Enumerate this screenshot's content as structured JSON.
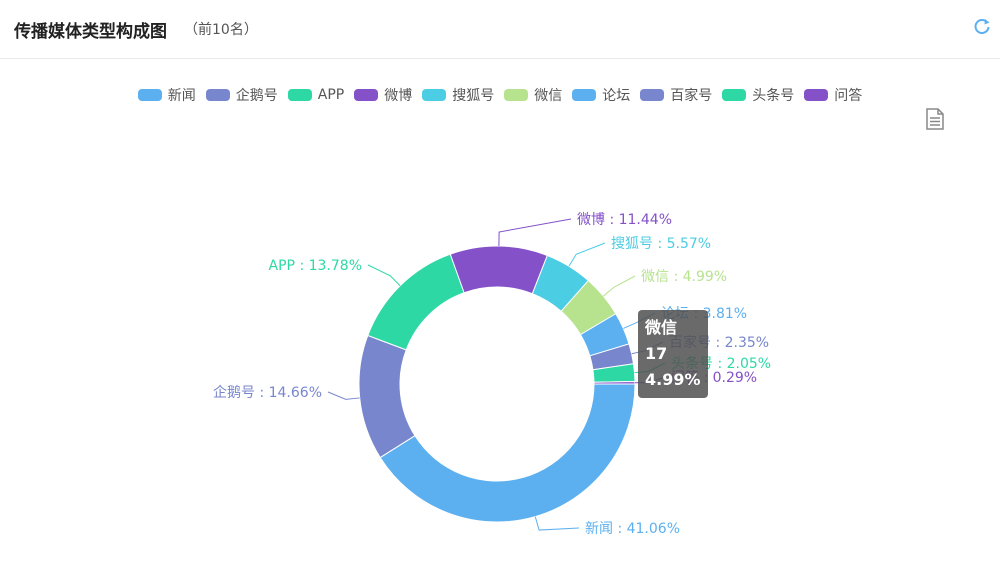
{
  "header": {
    "title": "传播媒体类型构成图",
    "subtitle": "（前10名）"
  },
  "tooltip": {
    "name": "微信",
    "value": "17",
    "percent": "4.99%"
  },
  "colors": {
    "text": "#555555",
    "leader": "#999999"
  },
  "chart_data": {
    "type": "pie",
    "variant": "donut",
    "legend_position": "top-center",
    "slices": [
      {
        "name": "新闻",
        "percent": 41.06,
        "label": "新闻 : 41.06%",
        "color": "#5cb0f0"
      },
      {
        "name": "企鹅号",
        "percent": 14.66,
        "label": "企鹅号 : 14.66%",
        "color": "#7886cd"
      },
      {
        "name": "APP",
        "percent": 13.78,
        "label": "APP : 13.78%",
        "color": "#2ed8a4"
      },
      {
        "name": "微博",
        "percent": 11.44,
        "label": "微博 : 11.44%",
        "color": "#8451c9"
      },
      {
        "name": "搜狐号",
        "percent": 5.57,
        "label": "搜狐号 : 5.57%",
        "color": "#4bcde3"
      },
      {
        "name": "微信",
        "percent": 4.99,
        "label": "微信 : 4.99%",
        "color": "#b7e38f"
      },
      {
        "name": "论坛",
        "percent": 3.81,
        "label": "论坛 : 3.81%",
        "color": "#5cb0f0"
      },
      {
        "name": "百家号",
        "percent": 2.35,
        "label": "百家号 : 2.35%",
        "color": "#7886cd"
      },
      {
        "name": "头条号",
        "percent": 2.05,
        "label": "头条号 : 2.05%",
        "color": "#2ed8a4"
      },
      {
        "name": "问答",
        "percent": 0.29,
        "label": "问答 : 0.29%",
        "color": "#8451c9"
      }
    ]
  }
}
